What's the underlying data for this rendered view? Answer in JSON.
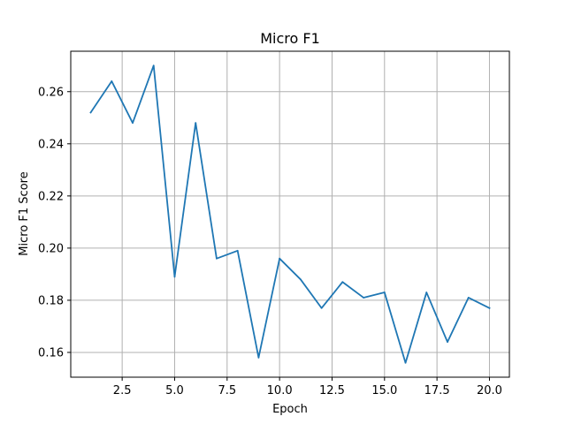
{
  "chart_data": {
    "type": "line",
    "title": "Micro F1",
    "xlabel": "Epoch",
    "ylabel": "Micro F1 Score",
    "xlim": [
      0.05,
      20.95
    ],
    "ylim": [
      0.1505,
      0.2755
    ],
    "x_ticks": [
      2.5,
      5.0,
      7.5,
      10.0,
      12.5,
      15.0,
      17.5,
      20.0
    ],
    "x_tick_labels": [
      "2.5",
      "5.0",
      "7.5",
      "10.0",
      "12.5",
      "15.0",
      "17.5",
      "20.0"
    ],
    "y_ticks": [
      0.16,
      0.18,
      0.2,
      0.22,
      0.24,
      0.26
    ],
    "y_tick_labels": [
      "0.16",
      "0.18",
      "0.20",
      "0.22",
      "0.24",
      "0.26"
    ],
    "grid": true,
    "series": [
      {
        "color": "#1f77b4",
        "x": [
          1,
          2,
          3,
          4,
          5,
          6,
          7,
          8,
          9,
          10,
          11,
          12,
          13,
          14,
          15,
          16,
          17,
          18,
          19,
          20
        ],
        "y": [
          0.252,
          0.264,
          0.248,
          0.27,
          0.189,
          0.248,
          0.196,
          0.199,
          0.158,
          0.196,
          0.188,
          0.177,
          0.187,
          0.181,
          0.183,
          0.156,
          0.183,
          0.164,
          0.181,
          0.177
        ]
      }
    ]
  }
}
